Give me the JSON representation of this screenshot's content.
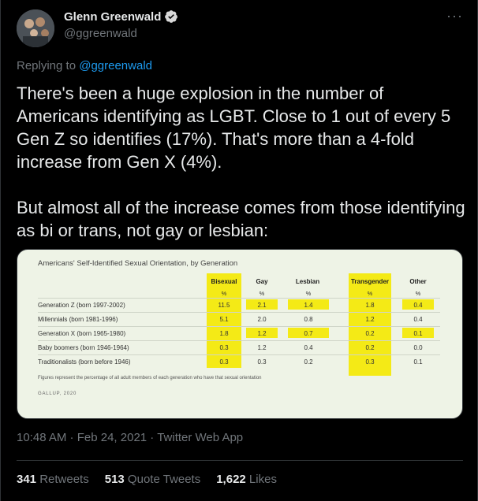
{
  "author": {
    "name": "Glenn Greenwald",
    "handle": "@ggreenwald",
    "verified_icon": "verified-badge-icon"
  },
  "more_label": "···",
  "reply": {
    "prefix": "Replying to ",
    "to": "@ggreenwald"
  },
  "text": {
    "p1": "There's been a huge explosion in the number of Americans identifying as LGBT. Close to 1 out of every 5 Gen Z so identifies (17%). That's more than a 4-fold increase from Gen X (4%).",
    "p2": "But almost all of the increase comes from those identifying as bi or trans, not gay or lesbian:"
  },
  "media": {
    "title": "Americans' Self-Identified Sexual Orientation, by Generation",
    "columns": [
      "Bisexual",
      "Gay",
      "Lesbian",
      "Transgender",
      "Other"
    ],
    "unit": "%",
    "rows": [
      {
        "label": "Generation Z (born 1997-2002)",
        "values": [
          "11.5",
          "2.1",
          "1.4",
          "1.8",
          "0.4"
        ]
      },
      {
        "label": "Millennials (born 1981-1996)",
        "values": [
          "5.1",
          "2.0",
          "0.8",
          "1.2",
          "0.4"
        ]
      },
      {
        "label": "Generation X (born 1965-1980)",
        "values": [
          "1.8",
          "1.2",
          "0.7",
          "0.2",
          "0.1"
        ]
      },
      {
        "label": "Baby boomers (born 1946-1964)",
        "values": [
          "0.3",
          "1.2",
          "0.4",
          "0.2",
          "0.0"
        ]
      },
      {
        "label": "Traditionalists (born before 1946)",
        "values": [
          "0.3",
          "0.3",
          "0.2",
          "0.3",
          "0.1"
        ]
      }
    ],
    "footnote": "Figures represent the percentage of all adult members of each generation who have that sexual orientation",
    "source": "GALLUP, 2020",
    "highlight_color": "#f4ea16"
  },
  "meta": {
    "time": "10:48 AM",
    "sep1": " · ",
    "date": "Feb 24, 2021",
    "sep2": " · ",
    "client": "Twitter Web App"
  },
  "stats": {
    "retweets_count": "341",
    "retweets_label": " Retweets",
    "quotes_count": "513",
    "quotes_label": " Quote Tweets",
    "likes_count": "1,622",
    "likes_label": " Likes"
  },
  "colors": {
    "background": "#000000",
    "link": "#1d9bf0",
    "muted": "#71767b",
    "verified": "#d9d9d9"
  }
}
